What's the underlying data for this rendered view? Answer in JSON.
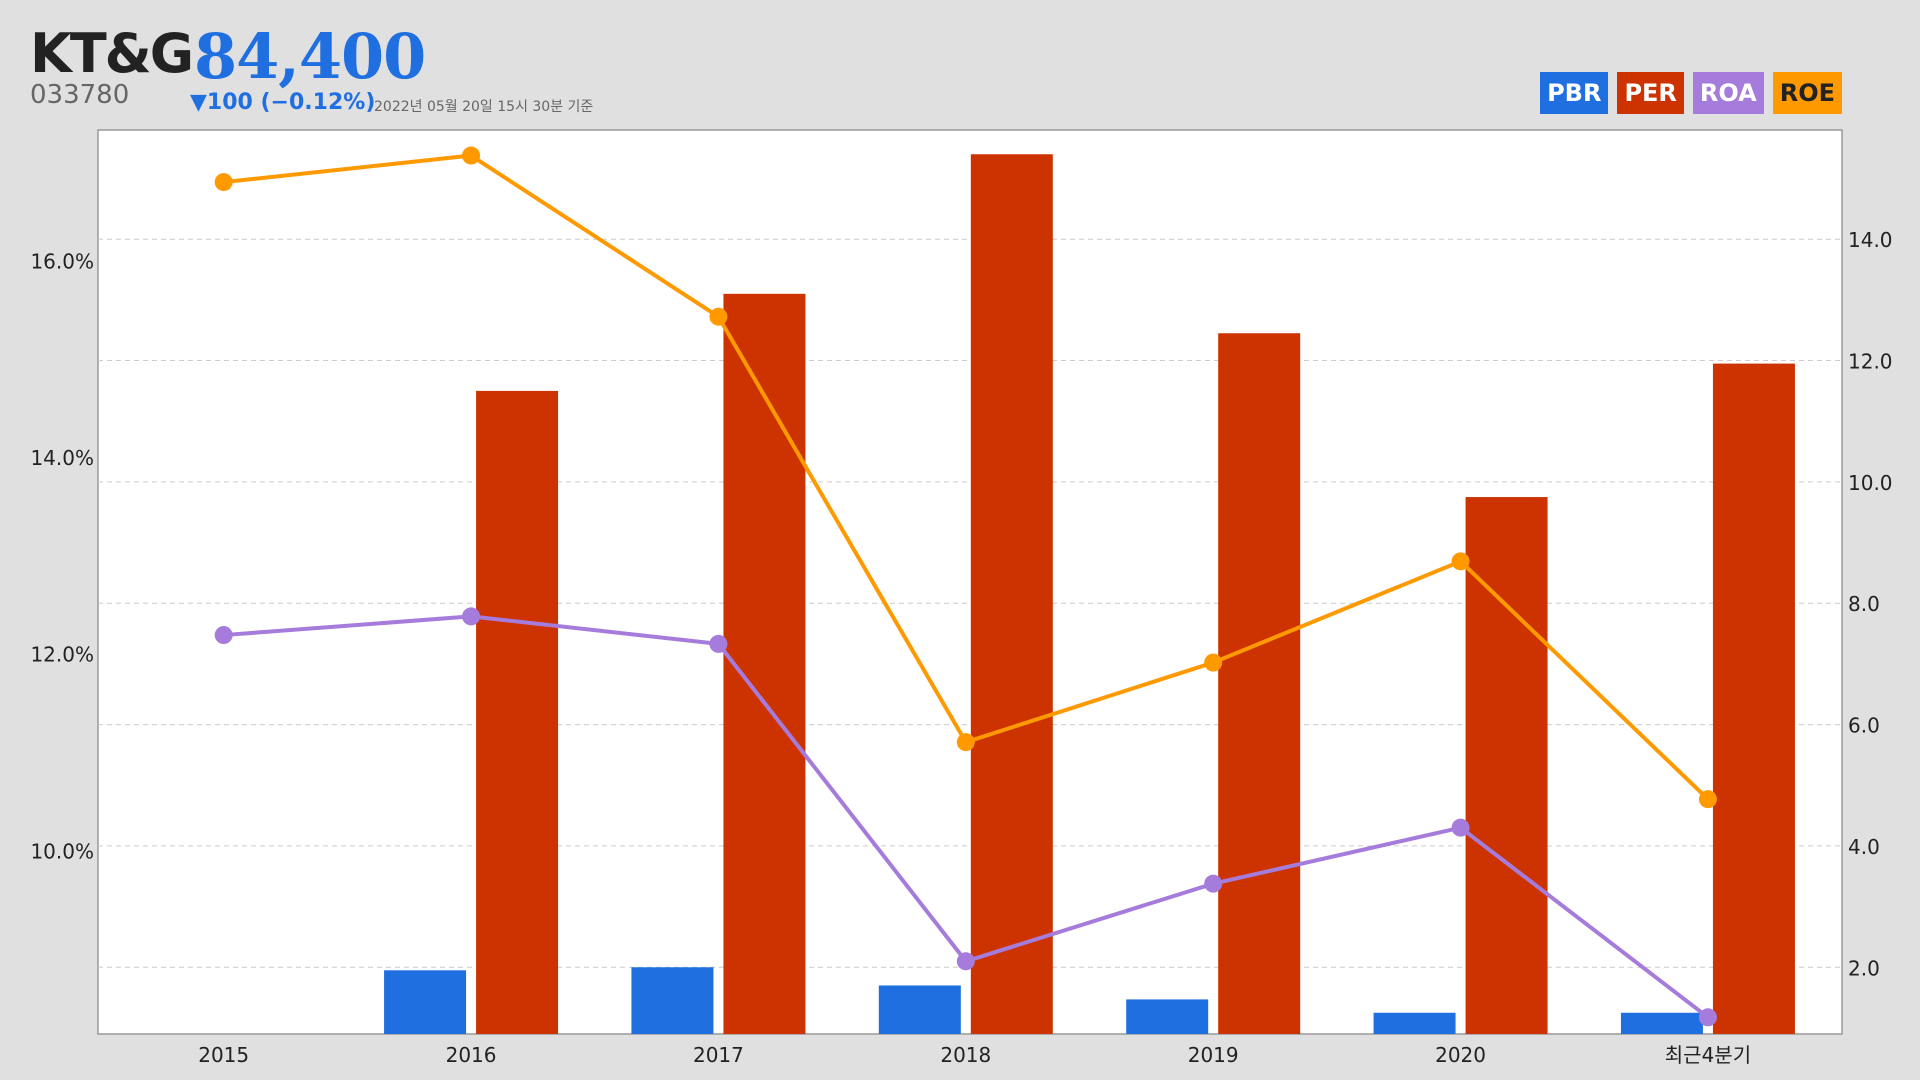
{
  "header": {
    "company": "KT&G",
    "price": "84,400",
    "code": "033780",
    "change": "▼100 (−0.12%)",
    "as_of": "2022년 05월 20일 15시 30분 기준"
  },
  "legend": [
    {
      "label": "PBR",
      "color": "#1f6fe0"
    },
    {
      "label": "PER",
      "color": "#cc3300"
    },
    {
      "label": "ROA",
      "color": "#a57bdc"
    },
    {
      "label": "ROE",
      "color": "#ff9900"
    }
  ],
  "chart_data": {
    "type": "bar",
    "categories": [
      "2015",
      "2016",
      "2017",
      "2018",
      "2019",
      "2020",
      "최근4분기"
    ],
    "left_axis": {
      "min": 8.13,
      "max": 17.33,
      "ticks": [
        10.0,
        12.0,
        14.0,
        16.0
      ],
      "tick_labels": [
        "10.0%",
        "12.0%",
        "14.0%",
        "16.0%"
      ]
    },
    "right_axis": {
      "min": 0.9,
      "max": 15.8,
      "ticks": [
        2.0,
        4.0,
        6.0,
        8.0,
        10.0,
        12.0,
        14.0
      ],
      "tick_labels": [
        "2.0",
        "4.0",
        "6.0",
        "8.0",
        "10.0",
        "12.0",
        "14.0"
      ]
    },
    "grid": true,
    "series": [
      {
        "name": "PBR",
        "type": "bar",
        "axis": "right",
        "color": "#1f6fe0",
        "values": [
          null,
          1.95,
          2.0,
          1.7,
          1.47,
          1.25,
          1.25
        ]
      },
      {
        "name": "PER",
        "type": "bar",
        "axis": "right",
        "color": "#cc3300",
        "values": [
          null,
          11.5,
          13.1,
          15.4,
          12.45,
          9.75,
          11.95
        ]
      },
      {
        "name": "ROA",
        "type": "line",
        "axis": "left",
        "color": "#a57bdc",
        "values": [
          12.19,
          12.38,
          12.1,
          8.87,
          9.66,
          10.23,
          8.3
        ]
      },
      {
        "name": "ROE",
        "type": "line",
        "axis": "left",
        "color": "#ff9900",
        "values": [
          16.8,
          17.07,
          15.43,
          11.1,
          11.91,
          12.94,
          10.52
        ]
      }
    ]
  }
}
